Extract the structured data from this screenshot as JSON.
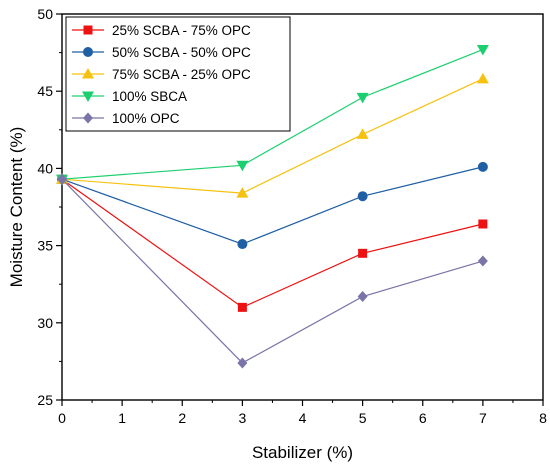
{
  "chart_data": {
    "type": "line",
    "title": "",
    "xlabel": "Stabilizer (%)",
    "ylabel": "Moisture Content (%)",
    "xlim": [
      0,
      8
    ],
    "ylim": [
      25,
      50
    ],
    "xticks": [
      0,
      1,
      2,
      3,
      4,
      5,
      6,
      7,
      8
    ],
    "yticks": [
      25,
      30,
      35,
      40,
      45,
      50
    ],
    "grid": false,
    "legend_position": "top-left",
    "x": [
      0,
      3,
      5,
      7
    ],
    "series": [
      {
        "name": "25% SCBA - 75% OPC",
        "values": [
          39.3,
          31.0,
          34.5,
          36.4
        ],
        "color": "#ee1111",
        "marker": "square"
      },
      {
        "name": "50% SCBA - 50% OPC",
        "values": [
          39.3,
          35.1,
          38.2,
          40.1
        ],
        "color": "#1f5fa3",
        "marker": "circle"
      },
      {
        "name": "75% SCBA - 25% OPC",
        "values": [
          39.3,
          38.4,
          42.2,
          45.8
        ],
        "color": "#f5c211",
        "marker": "triangle-up"
      },
      {
        "name": "100% SBCA",
        "values": [
          39.3,
          40.2,
          44.6,
          47.7
        ],
        "color": "#1ccf6e",
        "marker": "triangle-down"
      },
      {
        "name": "100% OPC",
        "values": [
          39.3,
          27.4,
          31.7,
          34.0
        ],
        "color": "#7a74a8",
        "marker": "diamond"
      }
    ]
  }
}
